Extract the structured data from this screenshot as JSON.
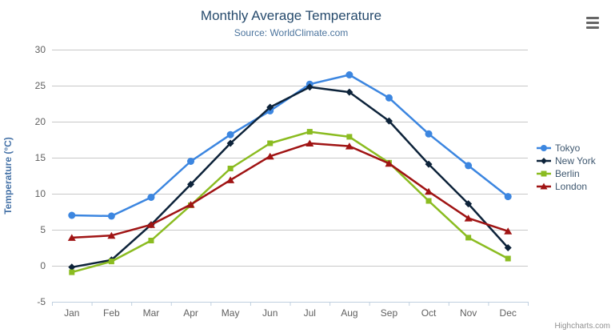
{
  "chart": {
    "credits_label": "Highcharts.com",
    "icons": {
      "context_menu": "hamburger-menu-icon"
    },
    "colors": {
      "title_text": "#274b6d",
      "subtitle_text": "#4d759e",
      "axis_label_text": "#606060",
      "y_axis_title_text": "#4572a7",
      "legend_text": "#3e576f",
      "gridline": "#c8c8c8",
      "axis_line": "#c0d0e0",
      "credits_text": "#909090",
      "menu_icon": "#666666"
    }
  },
  "chart_data": {
    "type": "line",
    "title": "Monthly Average Temperature",
    "subtitle": "Source: WorldClimate.com",
    "categories": [
      "Jan",
      "Feb",
      "Mar",
      "Apr",
      "May",
      "Jun",
      "Jul",
      "Aug",
      "Sep",
      "Oct",
      "Nov",
      "Dec"
    ],
    "xlabel": "",
    "ylabel": "Temperature (°C)",
    "ylim": [
      -5,
      30
    ],
    "yticks": [
      -5,
      0,
      5,
      10,
      15,
      20,
      25,
      30
    ],
    "grid": true,
    "legend_position": "right",
    "series": [
      {
        "name": "Tokyo",
        "color": "#3c86e0",
        "marker": "circle",
        "values": [
          7.0,
          6.9,
          9.5,
          14.5,
          18.2,
          21.5,
          25.2,
          26.5,
          23.3,
          18.3,
          13.9,
          9.6
        ]
      },
      {
        "name": "New York",
        "color": "#0d233a",
        "marker": "diamond",
        "values": [
          -0.2,
          0.8,
          5.7,
          11.3,
          17.0,
          22.0,
          24.8,
          24.1,
          20.1,
          14.1,
          8.6,
          2.5
        ]
      },
      {
        "name": "Berlin",
        "color": "#8bbc21",
        "marker": "square",
        "values": [
          -0.9,
          0.6,
          3.5,
          8.4,
          13.5,
          17.0,
          18.6,
          17.9,
          14.3,
          9.0,
          3.9,
          1.0
        ]
      },
      {
        "name": "London",
        "color": "#a01414",
        "marker": "triangle",
        "values": [
          3.9,
          4.2,
          5.7,
          8.5,
          11.9,
          15.2,
          17.0,
          16.6,
          14.2,
          10.3,
          6.6,
          4.8
        ]
      }
    ]
  }
}
